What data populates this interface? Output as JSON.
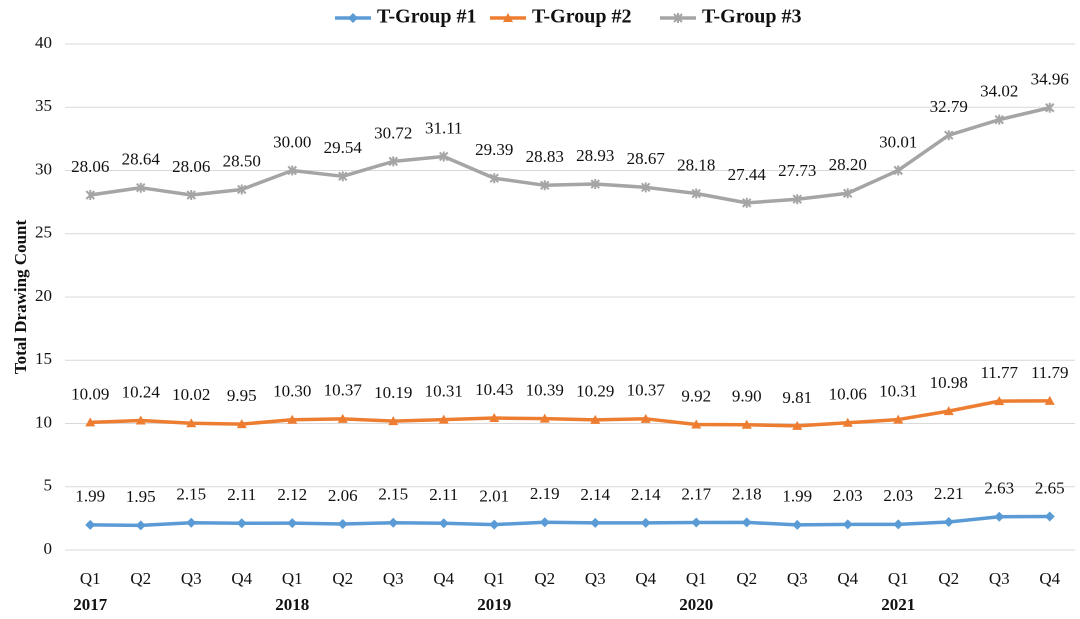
{
  "chart_data": {
    "type": "line",
    "y_axis_label": "Total Drawing Count",
    "categories": [
      "Q1",
      "Q2",
      "Q3",
      "Q4",
      "Q1",
      "Q2",
      "Q3",
      "Q4",
      "Q1",
      "Q2",
      "Q3",
      "Q4",
      "Q1",
      "Q2",
      "Q3",
      "Q4",
      "Q1",
      "Q2",
      "Q3",
      "Q4"
    ],
    "years": [
      "2017",
      "2018",
      "2019",
      "2020",
      "2021"
    ],
    "ylim": [
      0,
      40
    ],
    "yticks": [
      0,
      5,
      10,
      15,
      20,
      25,
      30,
      35,
      40
    ],
    "grid": true,
    "legend": "top",
    "series": [
      {
        "name": "T-Group #1",
        "color": "#5b9bd5",
        "marker": "diamond",
        "values": [
          1.99,
          1.95,
          2.15,
          2.11,
          2.12,
          2.06,
          2.15,
          2.11,
          2.01,
          2.19,
          2.14,
          2.14,
          2.17,
          2.18,
          1.99,
          2.03,
          2.03,
          2.21,
          2.63,
          2.65
        ],
        "value_labels": [
          "1.99",
          "1.95",
          "2.15",
          "2.11",
          "2.12",
          "2.06",
          "2.15",
          "2.11",
          "2.01",
          "2.19",
          "2.14",
          "2.14",
          "2.17",
          "2.18",
          "1.99",
          "2.03",
          "2.03",
          "2.21",
          "2.63",
          "2.65"
        ]
      },
      {
        "name": "T-Group #2",
        "color": "#ed7d31",
        "marker": "triangle",
        "values": [
          10.09,
          10.24,
          10.02,
          9.95,
          10.3,
          10.37,
          10.19,
          10.31,
          10.43,
          10.39,
          10.29,
          10.37,
          9.92,
          9.9,
          9.81,
          10.06,
          10.31,
          10.98,
          11.77,
          11.79
        ],
        "value_labels": [
          "10.09",
          "10.24",
          "10.02",
          "9.95",
          "10.30",
          "10.37",
          "10.19",
          "10.31",
          "10.43",
          "10.39",
          "10.29",
          "10.37",
          "9.92",
          "9.90",
          "9.81",
          "10.06",
          "10.31",
          "10.98",
          "11.77",
          "11.79"
        ]
      },
      {
        "name": "T-Group #3",
        "color": "#a5a5a5",
        "marker": "star",
        "values": [
          28.06,
          28.64,
          28.06,
          28.5,
          30,
          29.54,
          30.72,
          31.11,
          29.39,
          28.83,
          28.93,
          28.67,
          28.18,
          27.44,
          27.73,
          28.2,
          30.01,
          32.79,
          34.02,
          34.96
        ],
        "value_labels": [
          "28.06",
          "28.64",
          "28.06",
          "28.50",
          "30.00",
          "29.54",
          "30.72",
          "31.11",
          "29.39",
          "28.83",
          "28.93",
          "28.67",
          "28.18",
          "27.44",
          "27.73",
          "28.20",
          "30.01",
          "32.79",
          "34.02",
          "34.96"
        ]
      }
    ]
  }
}
